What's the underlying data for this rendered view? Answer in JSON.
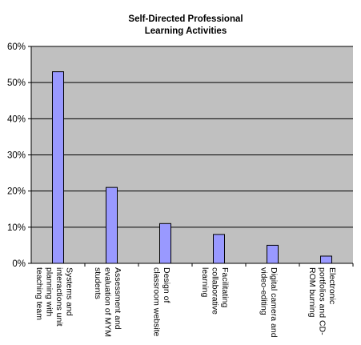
{
  "chart_data": {
    "type": "bar",
    "title": [
      "Self-Directed Professional",
      "Learning Activities"
    ],
    "categories": [
      [
        "Systems and",
        "interactions unit",
        "planning with",
        "teaching team"
      ],
      [
        "Assessment and",
        "evaluation of MYM",
        "students"
      ],
      [
        "Design of",
        "classroom website"
      ],
      [
        "Facilitating",
        "collaborative",
        "learning"
      ],
      [
        "Digital camera and",
        "video-editing"
      ],
      [
        "Electronic",
        "portfolios and CD-",
        "ROM burning"
      ]
    ],
    "values": [
      53,
      21,
      11,
      8,
      5,
      2
    ],
    "yticks": [
      "0%",
      "10%",
      "20%",
      "30%",
      "40%",
      "50%",
      "60%"
    ],
    "ylim": [
      0,
      60
    ],
    "grid": true,
    "colors": {
      "plot_bg": "#c0c0c0",
      "bar_fill": "#9999ff",
      "bar_stroke": "#000000",
      "grid": "#000000"
    }
  }
}
